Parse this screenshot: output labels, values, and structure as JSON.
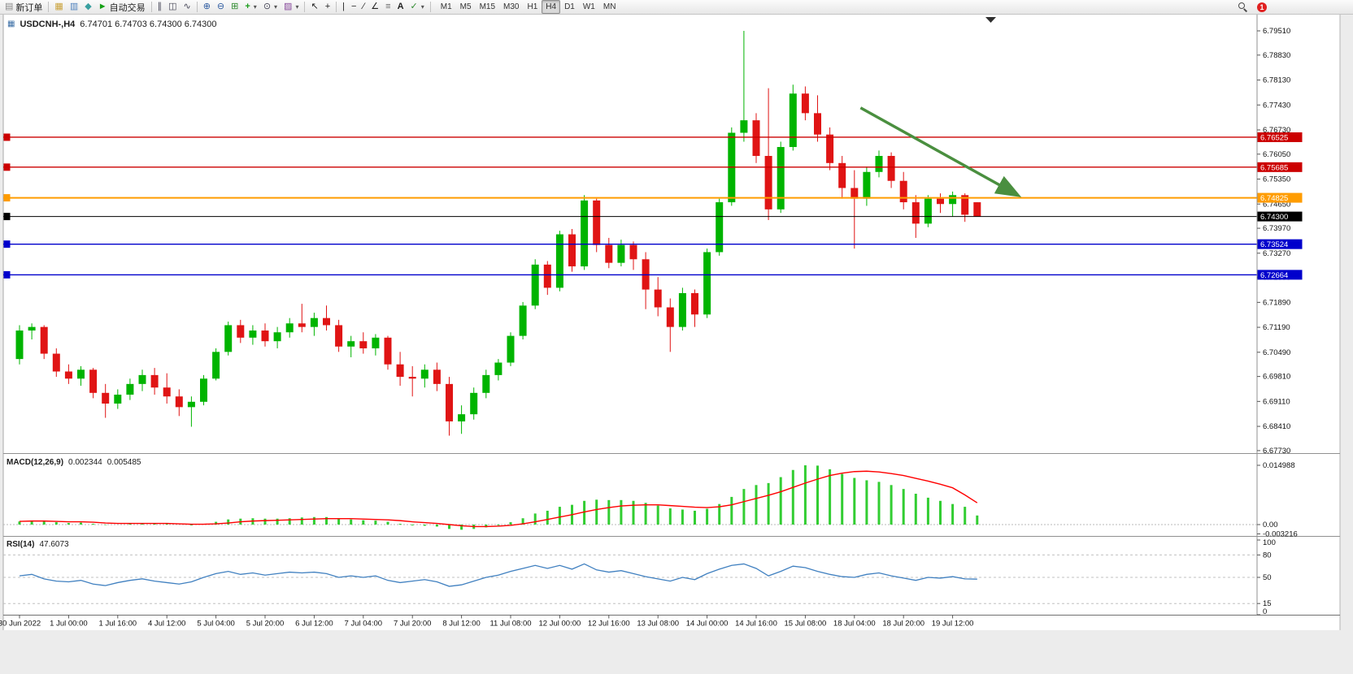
{
  "toolbar": {
    "new_order_label": "新订单",
    "auto_trading_label": "自动交易",
    "timeframes": [
      "M1",
      "M5",
      "M15",
      "M30",
      "H1",
      "H4",
      "D1",
      "W1",
      "MN"
    ],
    "active_timeframe": "H4",
    "notification_count": "1"
  },
  "chart": {
    "symbol_period": "USDCNH-,H4",
    "ohlc_text": "6.74701 6.74703 6.74300 6.74300"
  },
  "chart_data": {
    "type": "candlestick",
    "symbol": "USDCNH-",
    "period": "H4",
    "current": {
      "open": 6.74701,
      "high": 6.74703,
      "low": 6.743,
      "close": 6.743
    },
    "ylim": [
      6.6766,
      6.7958
    ],
    "colors": {
      "bull": "#00b400",
      "bear": "#e01414",
      "macd_hist": "#32cd32",
      "macd_signal": "#ff0000",
      "rsi": "#4080c0",
      "arrow": "#4a8f3f"
    },
    "y_ticks": [
      "6.79510",
      "6.78830",
      "6.78130",
      "6.77430",
      "6.76730",
      "6.76050",
      "6.75350",
      "6.74650",
      "6.73970",
      "6.73270",
      "6.72590",
      "6.71890",
      "6.71190",
      "6.70490",
      "6.69810",
      "6.69110",
      "6.68410",
      "6.67730"
    ],
    "x_labels": [
      "30 Jun 2022",
      "1 Jul 00:00",
      "1 Jul 16:00",
      "4 Jul 12:00",
      "5 Jul 04:00",
      "5 Jul 20:00",
      "6 Jul 12:00",
      "7 Jul 04:00",
      "7 Jul 20:00",
      "8 Jul 12:00",
      "11 Jul 08:00",
      "12 Jul 00:00",
      "12 Jul 16:00",
      "13 Jul 08:00",
      "14 Jul 00:00",
      "14 Jul 16:00",
      "15 Jul 08:00",
      "18 Jul 04:00",
      "18 Jul 20:00",
      "19 Jul 12:00"
    ],
    "labels_every": 4,
    "h_lines": [
      {
        "price": 6.76525,
        "label": "6.76525",
        "color": "#cc0000",
        "width": 1.4
      },
      {
        "price": 6.75685,
        "label": "6.75685",
        "color": "#cc0000",
        "width": 1.4
      },
      {
        "price": 6.74825,
        "label": "6.74825",
        "color": "#ff9c00",
        "width": 2
      },
      {
        "price": 6.743,
        "label": "6.74300",
        "color": "#000000",
        "width": 1
      },
      {
        "price": 6.73524,
        "label": "6.73524",
        "color": "#0000cc",
        "width": 1.4
      },
      {
        "price": 6.72664,
        "label": "6.72664",
        "color": "#0000cc",
        "width": 1.4
      }
    ],
    "arrow": {
      "from_index": 68.5,
      "from_price": 6.7735,
      "to_index": 81.3,
      "to_price": 6.749,
      "color": "#4a8f3f"
    },
    "candles": [
      [
        6.703,
        6.7125,
        6.7015,
        6.711
      ],
      [
        6.711,
        6.713,
        6.7085,
        6.712
      ],
      [
        6.712,
        6.7125,
        6.703,
        6.7045
      ],
      [
        6.7045,
        6.706,
        6.698,
        6.6995
      ],
      [
        6.6995,
        6.7015,
        6.696,
        6.6975
      ],
      [
        6.6975,
        6.701,
        6.6955,
        6.7
      ],
      [
        6.7,
        6.7005,
        6.692,
        6.6935
      ],
      [
        6.6935,
        6.696,
        6.6865,
        6.6905
      ],
      [
        6.6905,
        6.6945,
        6.689,
        6.693
      ],
      [
        6.693,
        6.6975,
        6.6915,
        6.696
      ],
      [
        6.696,
        6.7,
        6.694,
        6.6985
      ],
      [
        6.6985,
        6.7005,
        6.693,
        6.695
      ],
      [
        6.695,
        6.699,
        6.6905,
        6.6925
      ],
      [
        6.6925,
        6.6945,
        6.687,
        6.6895
      ],
      [
        6.6895,
        6.6925,
        6.684,
        6.691
      ],
      [
        6.691,
        6.6985,
        6.69,
        6.6975
      ],
      [
        6.6975,
        6.706,
        6.697,
        6.705
      ],
      [
        6.705,
        6.7135,
        6.704,
        6.7125
      ],
      [
        6.7125,
        6.714,
        6.7075,
        6.709
      ],
      [
        6.709,
        6.7125,
        6.707,
        6.711
      ],
      [
        6.711,
        6.713,
        6.7065,
        6.708
      ],
      [
        6.708,
        6.712,
        6.706,
        6.7105
      ],
      [
        6.7105,
        6.7145,
        6.709,
        6.713
      ],
      [
        6.713,
        6.7185,
        6.7105,
        6.712
      ],
      [
        6.712,
        6.716,
        6.7095,
        6.7145
      ],
      [
        6.7145,
        6.718,
        6.711,
        6.7125
      ],
      [
        6.7125,
        6.714,
        6.705,
        6.7065
      ],
      [
        6.7065,
        6.7095,
        6.7035,
        6.708
      ],
      [
        6.708,
        6.7105,
        6.7045,
        6.706
      ],
      [
        6.706,
        6.71,
        6.704,
        6.709
      ],
      [
        6.709,
        6.7095,
        6.7,
        6.7015
      ],
      [
        6.7015,
        6.705,
        6.6955,
        6.698
      ],
      [
        6.698,
        6.701,
        6.6925,
        6.6975
      ],
      [
        6.6975,
        6.7015,
        6.695,
        6.7
      ],
      [
        6.7,
        6.702,
        6.694,
        6.696
      ],
      [
        6.696,
        6.698,
        6.6815,
        6.6855
      ],
      [
        6.6855,
        6.69,
        6.682,
        6.6875
      ],
      [
        6.6875,
        6.695,
        6.686,
        6.6935
      ],
      [
        6.6935,
        6.7,
        6.692,
        6.6985
      ],
      [
        6.6985,
        6.703,
        6.697,
        6.702
      ],
      [
        6.702,
        6.7105,
        6.701,
        6.7095
      ],
      [
        6.7095,
        6.719,
        6.7085,
        6.718
      ],
      [
        6.718,
        6.731,
        6.717,
        6.7295
      ],
      [
        6.7295,
        6.7305,
        6.721,
        6.723
      ],
      [
        6.723,
        6.739,
        6.722,
        6.738
      ],
      [
        6.738,
        6.7395,
        6.7275,
        6.729
      ],
      [
        6.729,
        6.749,
        6.728,
        6.7475
      ],
      [
        6.7475,
        6.748,
        6.733,
        6.735
      ],
      [
        6.735,
        6.737,
        6.7285,
        6.73
      ],
      [
        6.73,
        6.7365,
        6.729,
        6.735
      ],
      [
        6.735,
        6.736,
        6.728,
        6.731
      ],
      [
        6.731,
        6.733,
        6.717,
        6.7225
      ],
      [
        6.7225,
        6.726,
        6.715,
        6.7175
      ],
      [
        6.7175,
        6.72,
        6.705,
        6.712
      ],
      [
        6.712,
        6.723,
        6.711,
        6.7215
      ],
      [
        6.7215,
        6.7225,
        6.712,
        6.7155
      ],
      [
        6.7155,
        6.734,
        6.7145,
        6.733
      ],
      [
        6.733,
        6.748,
        6.732,
        6.747
      ],
      [
        6.747,
        6.768,
        6.746,
        6.7665
      ],
      [
        6.7665,
        6.7951,
        6.764,
        6.77
      ],
      [
        6.77,
        6.772,
        6.758,
        6.76
      ],
      [
        6.76,
        6.779,
        6.742,
        6.745
      ],
      [
        6.745,
        6.764,
        6.744,
        6.7625
      ],
      [
        6.7625,
        6.78,
        6.7615,
        6.7775
      ],
      [
        6.7775,
        6.7795,
        6.77,
        6.772
      ],
      [
        6.772,
        6.777,
        6.764,
        6.766
      ],
      [
        6.766,
        6.768,
        6.756,
        6.758
      ],
      [
        6.758,
        6.76,
        6.748,
        6.751
      ],
      [
        6.751,
        6.756,
        6.734,
        6.748
      ],
      [
        6.748,
        6.757,
        6.746,
        6.7555
      ],
      [
        6.7555,
        6.7615,
        6.754,
        6.76
      ],
      [
        6.76,
        6.761,
        6.751,
        6.753
      ],
      [
        6.753,
        6.7555,
        6.745,
        6.747
      ],
      [
        6.747,
        6.749,
        6.737,
        6.741
      ],
      [
        6.741,
        6.749,
        6.74,
        6.748
      ],
      [
        6.748,
        6.7495,
        6.744,
        6.7465
      ],
      [
        6.7465,
        6.75,
        6.743,
        6.749
      ],
      [
        6.749,
        6.7495,
        6.7415,
        6.7435
      ],
      [
        6.747,
        6.747,
        6.743,
        6.743
      ]
    ],
    "macd": {
      "label": "MACD(12,26,9)",
      "value_main": "0.002344",
      "value_signal": "0.005485",
      "y_ticks": [
        "0.014988",
        "0.00",
        "-0.003216"
      ],
      "histogram": [
        0.0008,
        0.001,
        0.0009,
        0.0006,
        0.0004,
        0.0005,
        0.0002,
        -0.0001,
        0.0,
        0.0002,
        0.0004,
        0.0004,
        0.0002,
        0.0,
        -0.0002,
        0.0002,
        0.0007,
        0.0013,
        0.0015,
        0.0016,
        0.0015,
        0.0015,
        0.0016,
        0.0018,
        0.0019,
        0.0019,
        0.0016,
        0.0013,
        0.0011,
        0.001,
        0.0007,
        0.0002,
        -0.0002,
        -0.0003,
        -0.0005,
        -0.0011,
        -0.0013,
        -0.0011,
        -0.0007,
        -0.0002,
        0.0006,
        0.0016,
        0.0028,
        0.0035,
        0.0045,
        0.005,
        0.006,
        0.0063,
        0.0062,
        0.0062,
        0.006,
        0.0055,
        0.0048,
        0.0041,
        0.0038,
        0.0035,
        0.004,
        0.0052,
        0.007,
        0.009,
        0.01,
        0.0105,
        0.012,
        0.0138,
        0.015,
        0.0149,
        0.014,
        0.0128,
        0.0118,
        0.0112,
        0.0108,
        0.01,
        0.009,
        0.0078,
        0.0068,
        0.006,
        0.0052,
        0.0045,
        0.0023
      ],
      "signal": [
        0.0008,
        0.0009,
        0.0009,
        0.0008,
        0.0007,
        0.0007,
        0.0006,
        0.0004,
        0.0003,
        0.0003,
        0.0003,
        0.0003,
        0.0003,
        0.0002,
        0.0001,
        0.0001,
        0.0002,
        0.0004,
        0.0007,
        0.0009,
        0.001,
        0.0011,
        0.0012,
        0.0013,
        0.0014,
        0.0015,
        0.0015,
        0.0015,
        0.0014,
        0.0013,
        0.0012,
        0.001,
        0.0007,
        0.0005,
        0.0003,
        0.0,
        -0.0003,
        -0.0005,
        -0.0005,
        -0.0004,
        -0.0002,
        0.0002,
        0.0007,
        0.0013,
        0.0019,
        0.0025,
        0.0032,
        0.0038,
        0.0043,
        0.0047,
        0.0049,
        0.005,
        0.005,
        0.0048,
        0.0046,
        0.0044,
        0.0043,
        0.0045,
        0.005,
        0.0058,
        0.0066,
        0.0074,
        0.0083,
        0.0094,
        0.0105,
        0.0115,
        0.0124,
        0.013,
        0.0134,
        0.0135,
        0.0133,
        0.0129,
        0.0124,
        0.0117,
        0.011,
        0.0102,
        0.0093,
        0.0075,
        0.0055
      ]
    },
    "rsi": {
      "label": "RSI(14)",
      "value": "47.6073",
      "y_ticks": [
        "100",
        "80",
        "50",
        "15",
        "0"
      ],
      "levels": [
        80,
        50,
        15
      ],
      "values": [
        52,
        54,
        48,
        45,
        44,
        46,
        41,
        39,
        43,
        46,
        48,
        45,
        43,
        41,
        44,
        50,
        55,
        58,
        54,
        56,
        53,
        55,
        57,
        56,
        57,
        55,
        50,
        52,
        50,
        52,
        46,
        43,
        45,
        47,
        44,
        38,
        40,
        45,
        50,
        53,
        58,
        62,
        66,
        62,
        66,
        61,
        68,
        60,
        57,
        59,
        55,
        51,
        48,
        45,
        50,
        47,
        55,
        61,
        66,
        68,
        62,
        52,
        58,
        65,
        63,
        58,
        54,
        51,
        50,
        54,
        56,
        52,
        49,
        46,
        50,
        49,
        51,
        48,
        47.6
      ]
    }
  }
}
